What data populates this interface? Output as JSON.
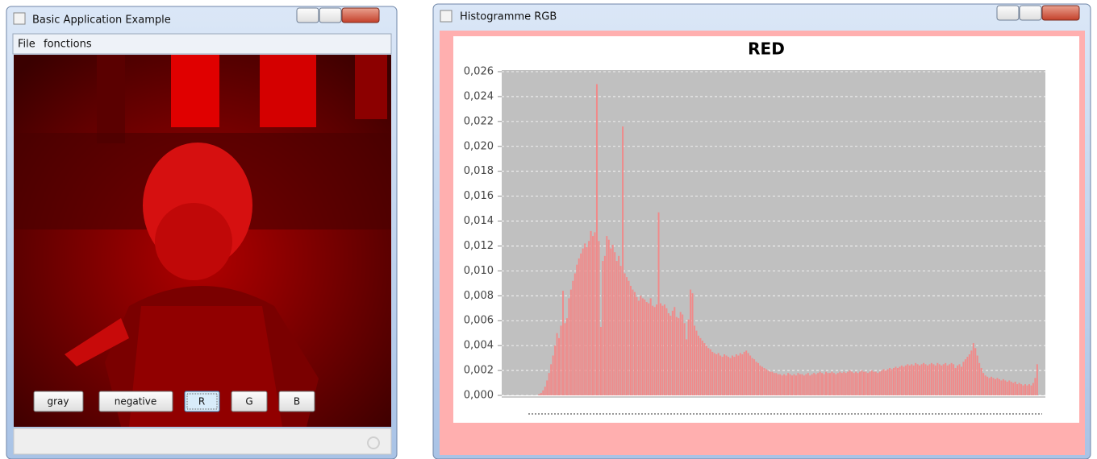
{
  "windows": [
    {
      "title": "Basic Application Example",
      "menu": [
        "File",
        "fonctions"
      ],
      "buttons": [
        "gray",
        "negative",
        "R",
        "G",
        "B"
      ]
    },
    {
      "title": "Histogramme RGB"
    }
  ],
  "chart_data": {
    "type": "bar",
    "title": "RED",
    "color": "#f08a8a",
    "grid": true,
    "ylim": [
      0,
      0.026
    ],
    "yticks": [
      {
        "value": 0,
        "label": "0,000"
      },
      {
        "value": 0.002,
        "label": "0,002"
      },
      {
        "value": 0.004,
        "label": "0,004"
      },
      {
        "value": 0.006,
        "label": "0,006"
      },
      {
        "value": 0.008,
        "label": "0,008"
      },
      {
        "value": 0.01,
        "label": "0,010"
      },
      {
        "value": 0.012,
        "label": "0,012"
      },
      {
        "value": 0.014,
        "label": "0,014"
      },
      {
        "value": 0.016,
        "label": "0,016"
      },
      {
        "value": 0.018,
        "label": "0,018"
      },
      {
        "value": 0.02,
        "label": "0,020"
      },
      {
        "value": 0.022,
        "label": "0,022"
      },
      {
        "value": 0.024,
        "label": "0,024"
      },
      {
        "value": 0.026,
        "label": "0,026"
      }
    ],
    "values": [
      0,
      0,
      0,
      0,
      0,
      0.0001,
      0.0002,
      0.0004,
      0.0007,
      0.0012,
      0.0018,
      0.0025,
      0.0032,
      0.004,
      0.005,
      0.0046,
      0.0056,
      0.0084,
      0.0058,
      0.0062,
      0.0078,
      0.0085,
      0.0092,
      0.0098,
      0.0105,
      0.011,
      0.0114,
      0.0118,
      0.0122,
      0.0119,
      0.0124,
      0.0132,
      0.0128,
      0.0131,
      0.025,
      0.0124,
      0.0055,
      0.0108,
      0.0112,
      0.0128,
      0.0125,
      0.0118,
      0.0121,
      0.0115,
      0.0108,
      0.0112,
      0.0104,
      0.0216,
      0.0098,
      0.0095,
      0.0092,
      0.0088,
      0.0085,
      0.0083,
      0.0079,
      0.0076,
      0.008,
      0.0078,
      0.0077,
      0.0075,
      0.0074,
      0.0078,
      0.0072,
      0.0071,
      0.0073,
      0.0147,
      0.0074,
      0.0072,
      0.0073,
      0.007,
      0.0066,
      0.0064,
      0.0068,
      0.0071,
      0.0063,
      0.0062,
      0.0067,
      0.0065,
      0.0058,
      0.0045,
      0.0061,
      0.0085,
      0.0082,
      0.0056,
      0.0052,
      0.0048,
      0.0046,
      0.0044,
      0.0042,
      0.004,
      0.0038,
      0.0037,
      0.0035,
      0.0034,
      0.0033,
      0.0034,
      0.0032,
      0.0031,
      0.0033,
      0.0032,
      0.0031,
      0.003,
      0.0032,
      0.0031,
      0.0033,
      0.0032,
      0.0034,
      0.0033,
      0.0035,
      0.0036,
      0.0034,
      0.0032,
      0.003,
      0.0029,
      0.0027,
      0.0026,
      0.0024,
      0.0023,
      0.0022,
      0.0021,
      0.002,
      0.0019,
      0.0019,
      0.0018,
      0.0018,
      0.0017,
      0.0017,
      0.0016,
      0.0017,
      0.0016,
      0.0018,
      0.0017,
      0.0016,
      0.0017,
      0.0016,
      0.0018,
      0.0017,
      0.0017,
      0.0016,
      0.0017,
      0.0018,
      0.0016,
      0.0017,
      0.0018,
      0.0017,
      0.0018,
      0.0019,
      0.0018,
      0.0017,
      0.0019,
      0.0018,
      0.0018,
      0.0019,
      0.0018,
      0.0017,
      0.0018,
      0.0019,
      0.0018,
      0.0019,
      0.0018,
      0.0019,
      0.002,
      0.0019,
      0.0018,
      0.0019,
      0.0018,
      0.0019,
      0.002,
      0.0019,
      0.0019,
      0.0018,
      0.0019,
      0.002,
      0.0019,
      0.0019,
      0.0018,
      0.0019,
      0.002,
      0.0021,
      0.002,
      0.0021,
      0.0022,
      0.0021,
      0.0022,
      0.0023,
      0.0022,
      0.0023,
      0.0024,
      0.0023,
      0.0024,
      0.0025,
      0.0024,
      0.0025,
      0.0024,
      0.0026,
      0.0025,
      0.0024,
      0.0025,
      0.0026,
      0.0025,
      0.0024,
      0.0025,
      0.0026,
      0.0025,
      0.0024,
      0.0026,
      0.0025,
      0.0024,
      0.0025,
      0.0026,
      0.0024,
      0.0025,
      0.0026,
      0.0025,
      0.0022,
      0.0024,
      0.0025,
      0.0023,
      0.0027,
      0.0029,
      0.0031,
      0.0033,
      0.0036,
      0.0042,
      0.0038,
      0.0032,
      0.0026,
      0.0022,
      0.0018,
      0.0016,
      0.0015,
      0.0014,
      0.0015,
      0.0014,
      0.0013,
      0.0014,
      0.0013,
      0.0012,
      0.0013,
      0.0012,
      0.0011,
      0.0012,
      0.0011,
      0.001,
      0.0011,
      0.0009,
      0.001,
      0.0009,
      0.0008,
      0.0009,
      0.0008,
      0.0009,
      0.0008,
      0.001,
      0.0014,
      0.0025
    ]
  }
}
